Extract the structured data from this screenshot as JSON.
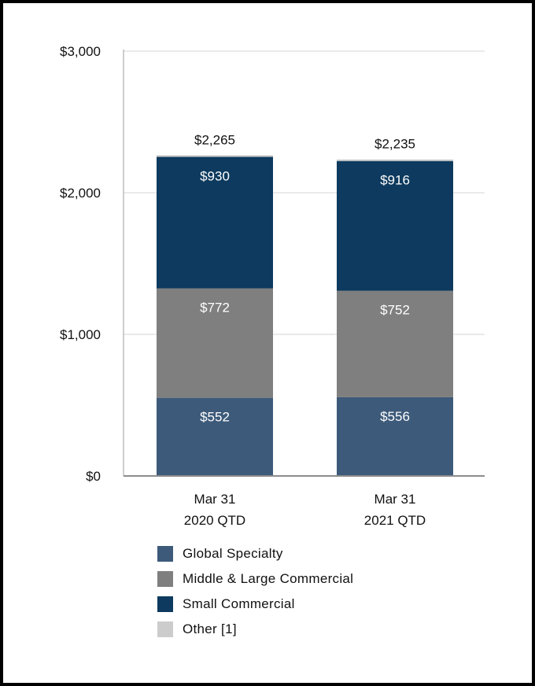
{
  "chart_data": {
    "type": "bar",
    "stacked": true,
    "categories": [
      [
        "Mar 31",
        "2020 QTD"
      ],
      [
        "Mar 31",
        "2021 QTD"
      ]
    ],
    "series": [
      {
        "name": "Global Specialty",
        "color": "#3d5a7a",
        "values": [
          552,
          556
        ],
        "labels": [
          "$552",
          "$556"
        ]
      },
      {
        "name": "Middle & Large Commercial",
        "color": "#7f7f7f",
        "values": [
          772,
          752
        ],
        "labels": [
          "$772",
          "$752"
        ]
      },
      {
        "name": "Small Commercial",
        "color": "#0d3a5e",
        "values": [
          930,
          916
        ],
        "labels": [
          "$930",
          "$916"
        ]
      },
      {
        "name": "Other [1]",
        "color": "#cccccc",
        "values": [
          11,
          11
        ],
        "labels": [
          "",
          ""
        ]
      }
    ],
    "totals": [
      2265,
      2235
    ],
    "total_labels": [
      "$2,265",
      "$2,235"
    ],
    "ylim": [
      0,
      3000
    ],
    "yticks": [
      0,
      1000,
      2000,
      3000
    ],
    "ytick_labels": [
      "$0",
      "$1,000",
      "$2,000",
      "$3,000"
    ],
    "grid": true,
    "legend_position": "bottom"
  }
}
